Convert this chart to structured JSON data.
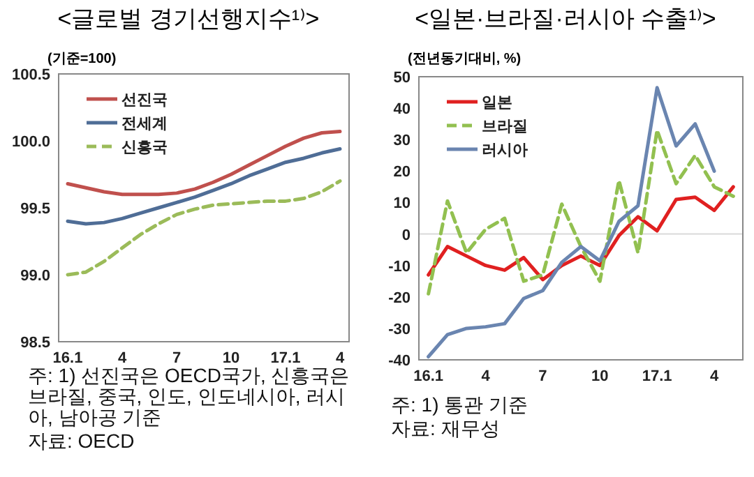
{
  "chart_data": [
    {
      "type": "line",
      "title": "<글로벌 경기선행지수¹⁾>",
      "ylabel": "(기준=100)",
      "categories": [
        "16.1",
        null,
        null,
        "4",
        null,
        null,
        "7",
        null,
        null,
        "10",
        null,
        null,
        "17.1",
        null,
        null,
        "4"
      ],
      "series": [
        {
          "name": "선진국",
          "color": "#c0504d",
          "line_style": "solid",
          "values": [
            99.68,
            99.65,
            99.62,
            99.6,
            99.6,
            99.6,
            99.61,
            99.64,
            99.69,
            99.75,
            99.82,
            99.89,
            99.96,
            100.02,
            100.06,
            100.07
          ]
        },
        {
          "name": "전세계",
          "color": "#4f6d96",
          "line_style": "solid",
          "values": [
            99.4,
            99.38,
            99.39,
            99.42,
            99.46,
            99.5,
            99.54,
            99.58,
            99.63,
            99.68,
            99.74,
            99.79,
            99.84,
            99.87,
            99.91,
            99.94
          ]
        },
        {
          "name": "신흥국",
          "color": "#9bbb59",
          "line_style": "dashed",
          "values": [
            99.0,
            99.02,
            99.1,
            99.2,
            99.3,
            99.38,
            99.45,
            99.49,
            99.52,
            99.53,
            99.54,
            99.55,
            99.55,
            99.57,
            99.62,
            99.7
          ]
        }
      ],
      "ylim": [
        98.5,
        100.5
      ],
      "yticks": [
        98.5,
        {
          "value": 99,
          "label": "99.0"
        },
        99.5,
        {
          "value": 100,
          "label": "100.0"
        },
        100.5
      ],
      "grid": false,
      "legend": "top left",
      "annotations": [
        "주: 1) 선진국은 OECD국가, 신흥국은 브라질, 중국, 인도, 인도네시아, 러시아, 남아공 기준",
        "자료: OECD"
      ]
    },
    {
      "type": "line",
      "title": "<일본·브라질·러시아 수출¹⁾>",
      "ylabel": "(전년동기대비, %)",
      "categories": [
        "16.1",
        null,
        null,
        "4",
        null,
        null,
        "7",
        null,
        null,
        "10",
        null,
        null,
        "17.1",
        null,
        null,
        "4",
        null
      ],
      "series": [
        {
          "name": "일본",
          "color": "#e02020",
          "line_style": "solid",
          "values": [
            -13,
            -4,
            -7,
            -10,
            -11.5,
            -7.5,
            -14.5,
            -10,
            -7,
            -10,
            -0.5,
            5.5,
            1,
            11,
            11.7,
            7.5,
            15
          ]
        },
        {
          "name": "브라질",
          "color": "#92c050",
          "line_style": "dashed",
          "values": [
            -19,
            10.5,
            -6,
            1.5,
            5,
            -15,
            -13,
            9.5,
            -4,
            -15,
            17,
            -6,
            33,
            16,
            25,
            15,
            12
          ]
        },
        {
          "name": "러시아",
          "color": "#6a85b0",
          "line_style": "solid",
          "values": [
            -39,
            -32,
            -30,
            -29.5,
            -28.5,
            -20.5,
            -18,
            -9,
            -4,
            -8.5,
            4,
            9,
            46.5,
            28,
            35,
            20,
            null
          ]
        }
      ],
      "ylim": [
        -40,
        50
      ],
      "yticks": [
        -40,
        -30,
        -20,
        -10,
        0,
        10,
        20,
        30,
        40,
        50
      ],
      "grid": false,
      "legend": "top left",
      "ref_lines": [
        {
          "axis": "y",
          "value": 0,
          "color": "#d9d9d9"
        }
      ],
      "annotations": [
        "주: 1) 통관 기준",
        "자료: 재무성"
      ]
    }
  ]
}
